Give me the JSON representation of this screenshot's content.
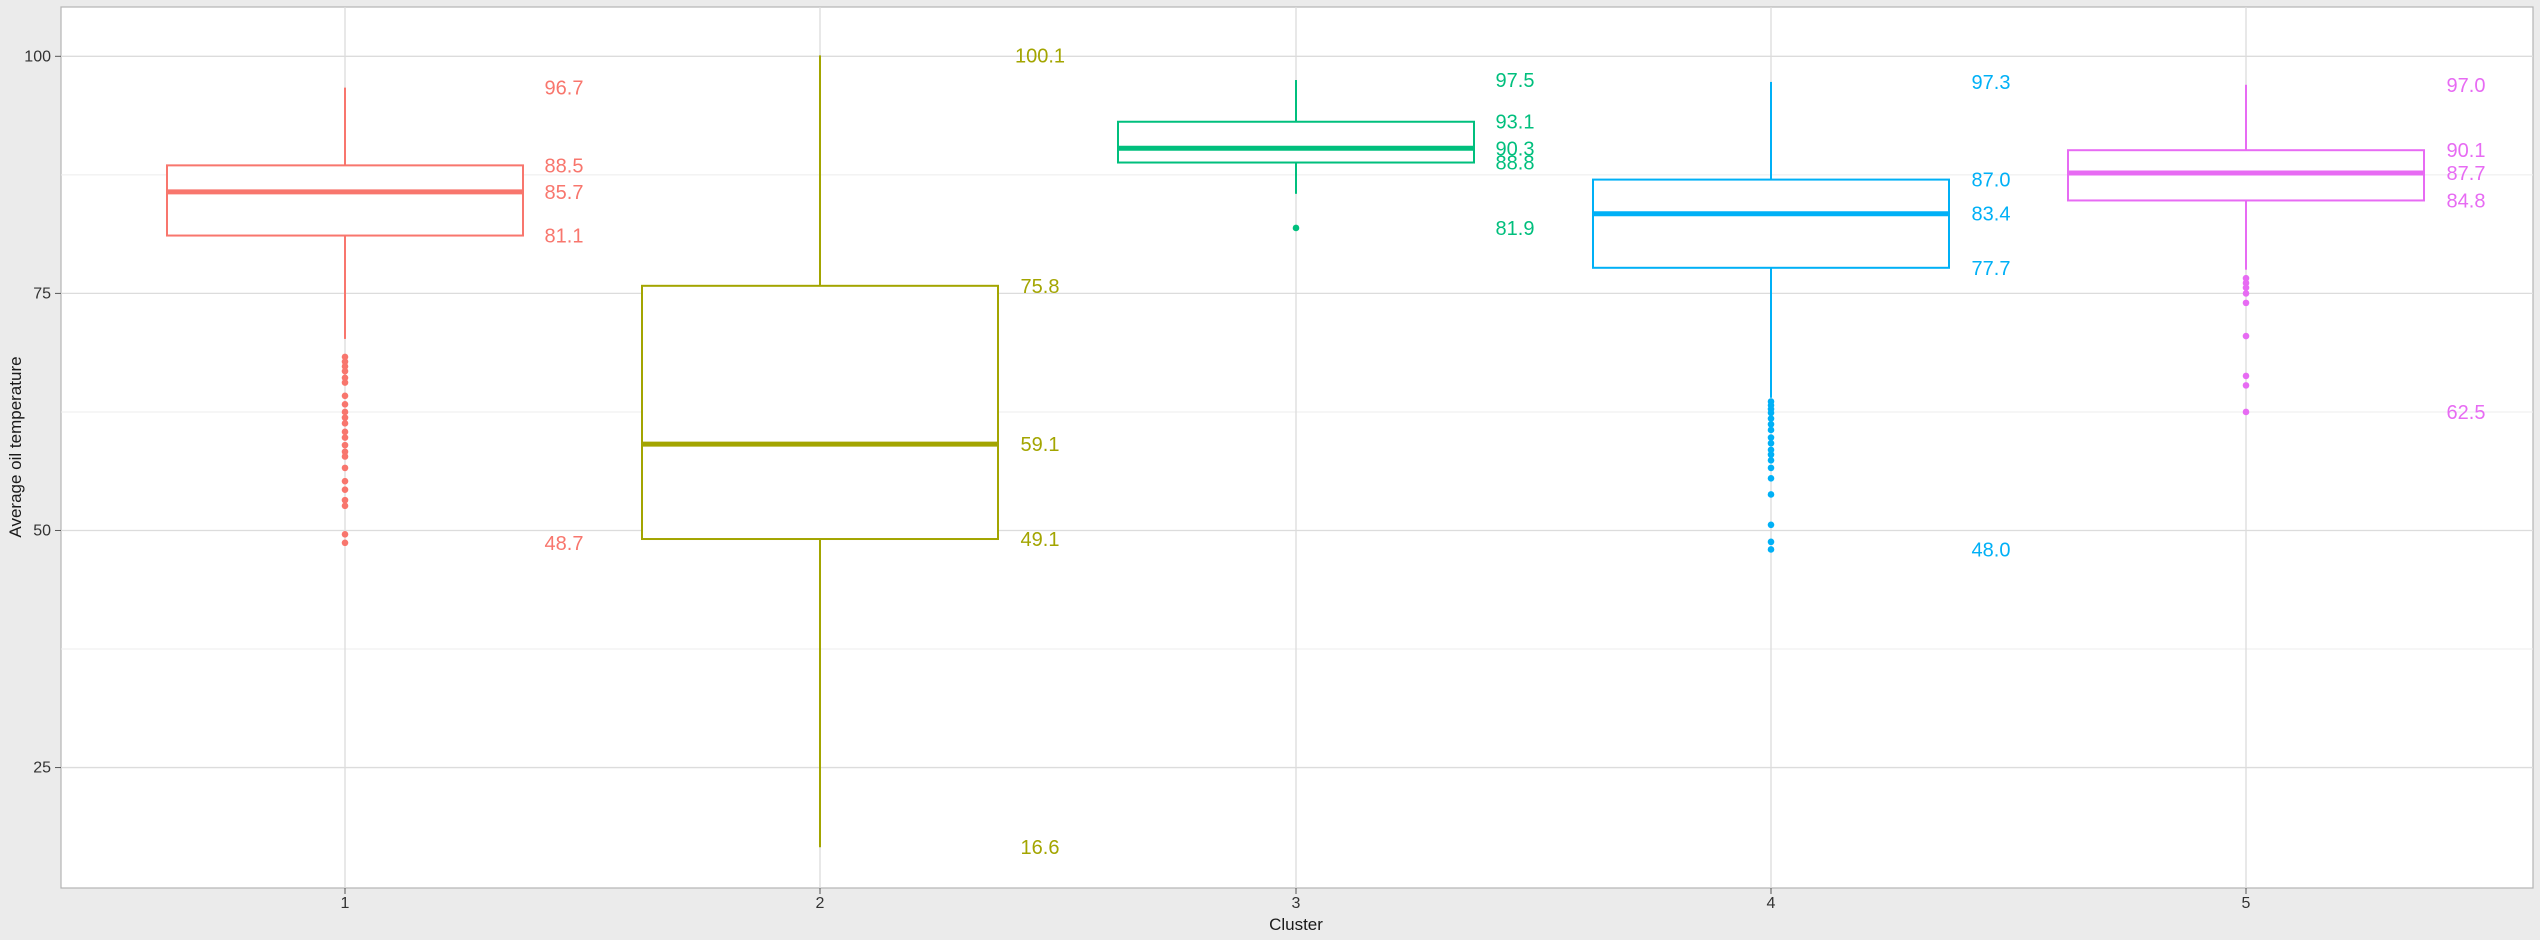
{
  "chart_data": {
    "type": "box",
    "title": "",
    "xlabel": "Cluster",
    "ylabel": "Average oil temperature",
    "categories": [
      "1",
      "2",
      "3",
      "4",
      "5"
    ],
    "ylim": [
      12.3,
      105.2
    ],
    "yticks": [
      25,
      50,
      75,
      100
    ],
    "ytick_labels": [
      "25",
      "50",
      "75",
      "100"
    ],
    "grid": true,
    "legend": "none",
    "series": [
      {
        "category": "1",
        "color": "#f8766d",
        "whisker_high": 96.7,
        "q3": 88.5,
        "median": 85.7,
        "q1": 81.1,
        "whisker_low": 70.2,
        "outliers": [
          68.3,
          67.8,
          67.3,
          66.8,
          66.1,
          65.6,
          64.2,
          63.3,
          62.5,
          61.9,
          61.3,
          60.4,
          59.8,
          59.0,
          58.3,
          57.8,
          56.6,
          55.2,
          54.3,
          53.2,
          52.6,
          49.6,
          48.7
        ],
        "labels": [
          {
            "text": "96.7",
            "value": 96.7
          },
          {
            "text": "88.5",
            "value": 88.5
          },
          {
            "text": "85.7",
            "value": 85.7
          },
          {
            "text": "81.1",
            "value": 81.1
          },
          {
            "text": "48.7",
            "value": 48.7
          }
        ]
      },
      {
        "category": "2",
        "color": "#a3a500",
        "whisker_high": 100.1,
        "q3": 75.8,
        "median": 59.1,
        "q1": 49.1,
        "whisker_low": 16.6,
        "outliers": [],
        "labels": [
          {
            "text": "100.1",
            "value": 100.1
          },
          {
            "text": "75.8",
            "value": 75.8
          },
          {
            "text": "59.1",
            "value": 59.1
          },
          {
            "text": "49.1",
            "value": 49.1
          },
          {
            "text": "16.6",
            "value": 16.6
          }
        ]
      },
      {
        "category": "3",
        "color": "#00bf7d",
        "whisker_high": 97.5,
        "q3": 93.1,
        "median": 90.3,
        "q1": 88.8,
        "whisker_low": 85.5,
        "outliers": [
          81.9
        ],
        "labels": [
          {
            "text": "97.5",
            "value": 97.5
          },
          {
            "text": "93.1",
            "value": 93.1
          },
          {
            "text": "90.3",
            "value": 90.3
          },
          {
            "text": "88.8",
            "value": 88.8
          },
          {
            "text": "81.9",
            "value": 81.9
          }
        ]
      },
      {
        "category": "4",
        "color": "#00b0f6",
        "whisker_high": 97.3,
        "q3": 87.0,
        "median": 83.4,
        "q1": 77.7,
        "whisker_low": 64.0,
        "outliers": [
          63.6,
          63.2,
          62.8,
          62.4,
          61.8,
          61.2,
          60.6,
          59.8,
          59.2,
          58.5,
          58.0,
          57.4,
          56.6,
          55.5,
          53.8,
          50.6,
          48.8,
          48.0
        ],
        "labels": [
          {
            "text": "97.3",
            "value": 97.3
          },
          {
            "text": "87.0",
            "value": 87.0
          },
          {
            "text": "83.4",
            "value": 83.4
          },
          {
            "text": "77.7",
            "value": 77.7
          },
          {
            "text": "48.0",
            "value": 48.0
          }
        ]
      },
      {
        "category": "5",
        "color": "#e76bf3",
        "whisker_high": 97.0,
        "q3": 90.1,
        "median": 87.7,
        "q1": 84.8,
        "whisker_low": 77.5,
        "outliers": [
          76.6,
          76.1,
          75.6,
          75.0,
          74.0,
          70.5,
          66.3,
          65.3,
          62.5
        ],
        "labels": [
          {
            "text": "97.0",
            "value": 97.0
          },
          {
            "text": "90.1",
            "value": 90.1
          },
          {
            "text": "87.7",
            "value": 87.7
          },
          {
            "text": "84.8",
            "value": 84.8
          },
          {
            "text": "62.5",
            "value": 62.5
          }
        ]
      }
    ]
  }
}
